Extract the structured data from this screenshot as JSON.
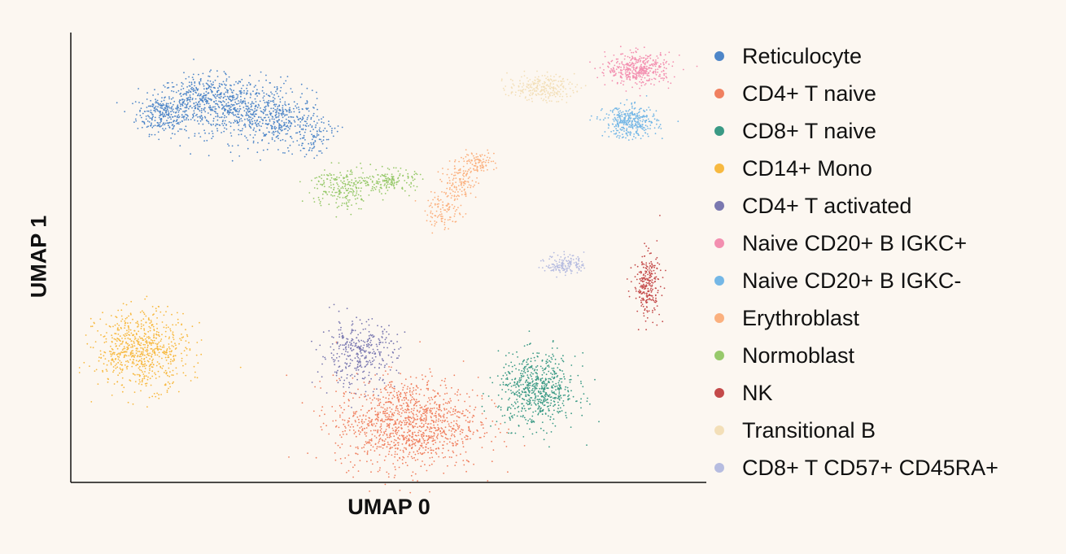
{
  "chart_data": {
    "type": "scatter",
    "xlabel": "UMAP 0",
    "ylabel": "UMAP 1",
    "xlim": [
      0,
      100
    ],
    "ylim": [
      0,
      100
    ],
    "grid": false,
    "ticks": false,
    "legend_position": "right",
    "series": [
      {
        "name": "Reticulocyte",
        "color": "#4e86c8",
        "clusters": [
          {
            "x": 14.5,
            "y": 81.9,
            "sx": 2.6,
            "sy": 2.7,
            "n": 250
          },
          {
            "x": 20.9,
            "y": 84.6,
            "sx": 4.5,
            "sy": 3.6,
            "n": 400
          },
          {
            "x": 27.3,
            "y": 82.8,
            "sx": 5.1,
            "sy": 4.5,
            "n": 450
          },
          {
            "x": 33.7,
            "y": 80.1,
            "sx": 3.8,
            "sy": 3.6,
            "n": 250
          },
          {
            "x": 38.2,
            "y": 76.9,
            "sx": 1.9,
            "sy": 2.7,
            "n": 80
          }
        ]
      },
      {
        "name": "CD4+ T naive",
        "color": "#f08060",
        "clusters": [
          {
            "x": 52.9,
            "y": 13.2,
            "sx": 7.0,
            "sy": 6.3,
            "n": 1200
          }
        ]
      },
      {
        "name": "CD8+ T naive",
        "color": "#3a9a85",
        "clusters": [
          {
            "x": 73.4,
            "y": 20.4,
            "sx": 3.8,
            "sy": 5.0,
            "n": 650
          }
        ]
      },
      {
        "name": "CD14+ Mono",
        "color": "#f7b940",
        "clusters": [
          {
            "x": 11.3,
            "y": 29.5,
            "sx": 4.5,
            "sy": 5.4,
            "n": 700
          }
        ]
      },
      {
        "name": "CD4+ T activated",
        "color": "#7a78b0",
        "clusters": [
          {
            "x": 45.2,
            "y": 28.6,
            "sx": 3.8,
            "sy": 4.5,
            "n": 350
          }
        ]
      },
      {
        "name": "Naive CD20+ B IGKC+",
        "color": "#f38fb0",
        "clusters": [
          {
            "x": 89.4,
            "y": 91.9,
            "sx": 3.2,
            "sy": 2.2,
            "n": 400
          }
        ]
      },
      {
        "name": "Naive CD20+ B IGKC-",
        "color": "#74b7e6",
        "clusters": [
          {
            "x": 88.1,
            "y": 80.1,
            "sx": 2.6,
            "sy": 2.2,
            "n": 350
          }
        ]
      },
      {
        "name": "Erythroblast",
        "color": "#fbb07e",
        "clusters": [
          {
            "x": 58.6,
            "y": 60.2,
            "sx": 1.8,
            "sy": 2.5,
            "n": 100
          },
          {
            "x": 61.2,
            "y": 66.5,
            "sx": 1.8,
            "sy": 2.5,
            "n": 120
          },
          {
            "x": 63.8,
            "y": 71.1,
            "sx": 1.8,
            "sy": 1.5,
            "n": 100
          }
        ]
      },
      {
        "name": "Normoblast",
        "color": "#97c96b",
        "clusters": [
          {
            "x": 42.6,
            "y": 65.6,
            "sx": 3.0,
            "sy": 3.0,
            "n": 220
          },
          {
            "x": 50.3,
            "y": 67.1,
            "sx": 2.5,
            "sy": 1.5,
            "n": 150
          }
        ]
      },
      {
        "name": "NK",
        "color": "#c44a4a",
        "clusters": [
          {
            "x": 90.7,
            "y": 43.9,
            "sx": 1.3,
            "sy": 4.5,
            "n": 250
          }
        ]
      },
      {
        "name": "Transitional B",
        "color": "#f3dfb8",
        "clusters": [
          {
            "x": 74.0,
            "y": 87.7,
            "sx": 3.2,
            "sy": 1.8,
            "n": 250
          }
        ]
      },
      {
        "name": "CD8+ T CD57+ CD45RA+",
        "color": "#b6bce0",
        "clusters": [
          {
            "x": 77.8,
            "y": 48.5,
            "sx": 1.9,
            "sy": 1.4,
            "n": 150
          }
        ]
      }
    ]
  }
}
